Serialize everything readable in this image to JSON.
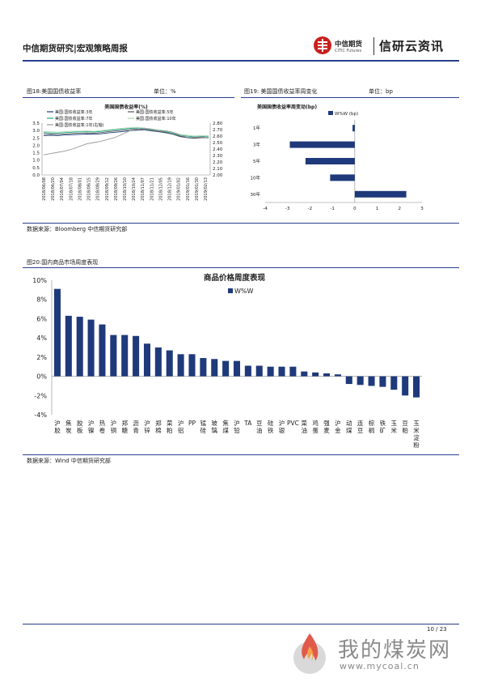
{
  "header": {
    "title": "中信期货研究|宏观策略周报",
    "logo_cn": "中信期货",
    "logo_en": "CITIC Futures",
    "brand": "信研云资讯"
  },
  "fig18": {
    "title": "图18:美国国债收益率",
    "unit": "单位：%",
    "source": "数据来源：Bloomberg 中信期货研究部",
    "chart_title": "美国国债收益率(%)",
    "legend": [
      "美国:国债收益率:3年",
      "美国:国债收益率:5年",
      "美国:国债收益率:7年",
      "美国:国债收益率:10年",
      "美国:国债收益率:1年(右轴)"
    ],
    "left_ticks": [
      "3.5",
      "3.0",
      "2.5",
      "2.0",
      "1.5",
      "1.0",
      "0.5",
      "0.0"
    ],
    "right_ticks": [
      "2.80",
      "2.70",
      "2.60",
      "2.50",
      "2.40",
      "2.30",
      "2.20",
      "2.10",
      "2.00"
    ],
    "x_ticks": [
      "2018/06/08",
      "2018/06/20",
      "2018/07/04",
      "2018/07/18",
      "2018/08/01",
      "2018/08/15",
      "2018/08/29",
      "2018/09/12",
      "2018/09/26",
      "2018/10/10",
      "2018/10/24",
      "2018/11/07",
      "2018/11/21",
      "2018/12/05",
      "2018/12/19",
      "2019/01/02",
      "2019/01/16",
      "2019/01/30",
      "2019/02/13"
    ]
  },
  "fig19": {
    "title": "图19: 美国国债收益率周变化",
    "unit": "单位：bp",
    "chart_title": "美国国债收益率周变动(bp)",
    "legend": "W%W (bp)",
    "color": "#1f3a7a"
  },
  "fig20": {
    "title": "图20:国内商品市场周度表现",
    "source": "数据来源：Wind 中信期货研究部",
    "color": "#1f3a7a"
  },
  "chart_data": [
    {
      "type": "line",
      "title": "美国国债收益率(%)",
      "x_range": [
        "2018/06/08",
        "2019/02/13"
      ],
      "ylim_left": [
        0.0,
        3.5
      ],
      "ylim_right": [
        2.0,
        2.8
      ],
      "grid": false,
      "legend_position": "top-left",
      "series": [
        {
          "name": "美国:国债收益率:3年",
          "color": "#1f3a7a",
          "axis": "left",
          "values": [
            2.65,
            2.68,
            2.66,
            2.7,
            2.72,
            2.74,
            2.76,
            2.75,
            2.78,
            2.84,
            2.88,
            2.93,
            2.98,
            3.02,
            3.05,
            2.98,
            2.92,
            2.85,
            2.75,
            2.6,
            2.52,
            2.48,
            2.51,
            2.52
          ]
        },
        {
          "name": "美国:国债收益率:5年",
          "color": "#555555",
          "axis": "left",
          "values": [
            2.78,
            2.76,
            2.74,
            2.77,
            2.8,
            2.82,
            2.84,
            2.82,
            2.86,
            2.92,
            2.97,
            3.02,
            3.07,
            3.1,
            3.08,
            3.0,
            2.94,
            2.87,
            2.76,
            2.62,
            2.55,
            2.5,
            2.52,
            2.5
          ]
        },
        {
          "name": "美国:国债收益率:7年",
          "color": "#22a889",
          "axis": "left",
          "values": [
            2.86,
            2.84,
            2.83,
            2.86,
            2.89,
            2.91,
            2.92,
            2.9,
            2.94,
            3.0,
            3.05,
            3.1,
            3.14,
            3.17,
            3.14,
            3.06,
            3.0,
            2.93,
            2.82,
            2.68,
            2.62,
            2.57,
            2.6,
            2.58
          ]
        },
        {
          "name": "美国:国债收益率:10年",
          "color": "#a8d8b0",
          "axis": "left",
          "values": [
            2.93,
            2.91,
            2.89,
            2.92,
            2.95,
            2.96,
            2.97,
            2.94,
            2.99,
            3.05,
            3.1,
            3.15,
            3.19,
            3.21,
            3.18,
            3.1,
            3.04,
            2.98,
            2.88,
            2.74,
            2.68,
            2.63,
            2.66,
            2.65
          ]
        },
        {
          "name": "美国:国债收益率:1年(右轴)",
          "color": "#999999",
          "axis": "right",
          "values": [
            2.31,
            2.33,
            2.35,
            2.37,
            2.4,
            2.44,
            2.48,
            2.5,
            2.52,
            2.55,
            2.58,
            2.63,
            2.68,
            2.7,
            2.72,
            2.71,
            2.69,
            2.68,
            2.66,
            2.62,
            2.58,
            2.58,
            2.59,
            2.57
          ]
        }
      ]
    },
    {
      "type": "bar",
      "orientation": "horizontal",
      "title": "美国国债收益率周变动(bp)",
      "categories": [
        "1年",
        "3年",
        "5年",
        "10年",
        "30年"
      ],
      "series": [
        {
          "name": "W%W (bp)",
          "values": [
            -0.1,
            -2.9,
            -2.2,
            -1.1,
            2.3
          ]
        }
      ],
      "xlim": [
        -4,
        3
      ],
      "x_ticks": [
        "-4",
        "-3",
        "-2",
        "-1",
        "0",
        "1",
        "2",
        "3"
      ],
      "legend_position": "top"
    },
    {
      "type": "bar",
      "title": "商品价格周度表现",
      "categories": [
        "沪胶",
        "焦炭",
        "胶板",
        "沪镍",
        "热卷",
        "沪铜",
        "郑糖",
        "沥青",
        "沪锌",
        "郑棉",
        "菜粕",
        "沪铝",
        "PP",
        "锰硅",
        "玻璃",
        "焦煤",
        "沪铅",
        "TA",
        "豆油",
        "硅铁",
        "沪银",
        "PVC",
        "菜油",
        "鸡蛋",
        "强麦",
        "沪金",
        "动煤",
        "连豆",
        "棕榈",
        "铁矿",
        "玉米",
        "豆粕",
        "玉米淀粉"
      ],
      "series": [
        {
          "name": "W%W",
          "values": [
            9.1,
            6.3,
            6.2,
            5.9,
            5.4,
            4.3,
            4.3,
            4.2,
            3.4,
            3.0,
            2.7,
            2.3,
            2.3,
            1.9,
            1.8,
            1.6,
            1.6,
            1.1,
            1.1,
            1.0,
            1.0,
            1.0,
            0.5,
            0.4,
            0.3,
            0.2,
            -0.8,
            -0.9,
            -1.0,
            -1.1,
            -1.4,
            -2.0,
            -2.2
          ]
        }
      ],
      "ylim": [
        -4,
        10
      ],
      "y_ticks": [
        "10%",
        "8%",
        "6%",
        "4%",
        "2%",
        "0%",
        "-2%",
        "-4%"
      ],
      "legend_position": "top-right"
    }
  ],
  "footer": {
    "page": "10 / 23"
  },
  "watermark": {
    "text": "我的煤炭网",
    "url": "www.mycoal.cn"
  }
}
